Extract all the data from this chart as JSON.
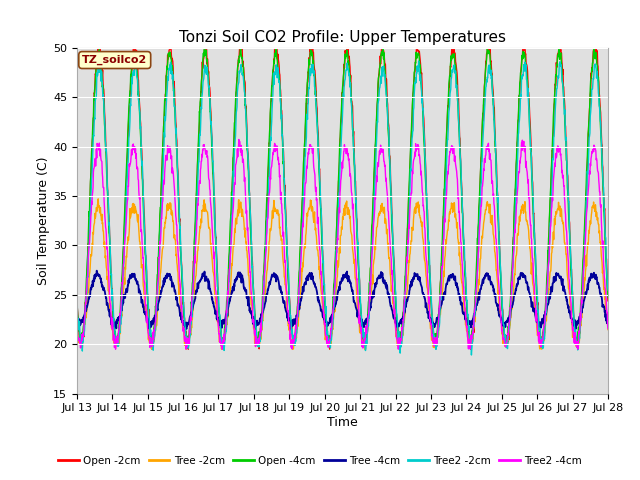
{
  "title": "Tonzi Soil CO2 Profile: Upper Temperatures",
  "xlabel": "Time",
  "ylabel": "Soil Temperature (C)",
  "ylim": [
    15,
    50
  ],
  "yticks": [
    15,
    20,
    25,
    30,
    35,
    40,
    45,
    50
  ],
  "legend_label": "TZ_soilco2",
  "series_labels": [
    "Open -2cm",
    "Tree -2cm",
    "Open -4cm",
    "Tree -4cm",
    "Tree2 -2cm",
    "Tree2 -4cm"
  ],
  "series_colors": [
    "#ff0000",
    "#ffa500",
    "#00cc00",
    "#000099",
    "#00cccc",
    "#ff00ff"
  ],
  "series_linewidths": [
    1.0,
    1.0,
    1.0,
    1.3,
    1.0,
    1.0
  ],
  "n_days": 15,
  "pts_per_day": 96,
  "start_day": 13,
  "background_color": "#ffffff",
  "plot_bg_color": "#e0e0e0",
  "title_fontsize": 11,
  "axis_fontsize": 9,
  "tick_fontsize": 8
}
